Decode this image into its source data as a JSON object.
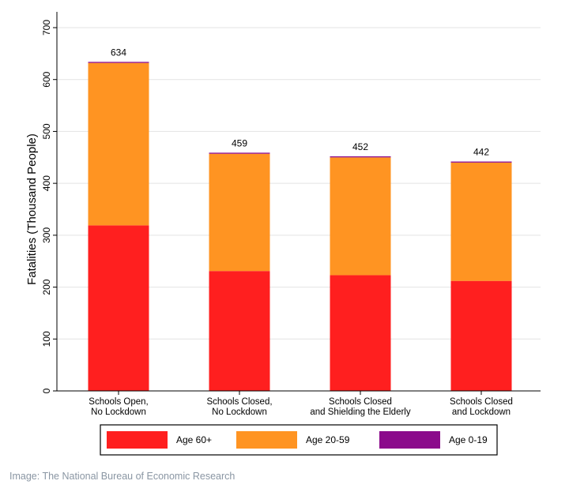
{
  "chart_data": {
    "type": "bar",
    "stacked": true,
    "categories": [
      [
        "Schools Open,",
        "No Lockdown"
      ],
      [
        "Schools Closed,",
        "No Lockdown"
      ],
      [
        "Schools Closed",
        "and Shielding the Elderly"
      ],
      [
        "Schools Closed",
        "and Lockdown"
      ]
    ],
    "series": [
      {
        "name": "Age 60+",
        "color": "#ff1f1f",
        "values": [
          319,
          231,
          223,
          212
        ]
      },
      {
        "name": "Age 20-59",
        "color": "#ff9422",
        "values": [
          313,
          226,
          227,
          228
        ]
      },
      {
        "name": "Age 0-19",
        "color": "#8b0a8b",
        "values": [
          2,
          2,
          2,
          2
        ]
      }
    ],
    "totals": [
      634,
      459,
      452,
      442
    ],
    "ylabel": "Fatalities (Thousand People)",
    "ylim": [
      0,
      700
    ],
    "yticks": [
      0,
      100,
      200,
      300,
      400,
      500,
      600,
      700
    ],
    "grid": true,
    "legend_position": "bottom"
  },
  "caption": "Image: The National Bureau of Economic Research"
}
